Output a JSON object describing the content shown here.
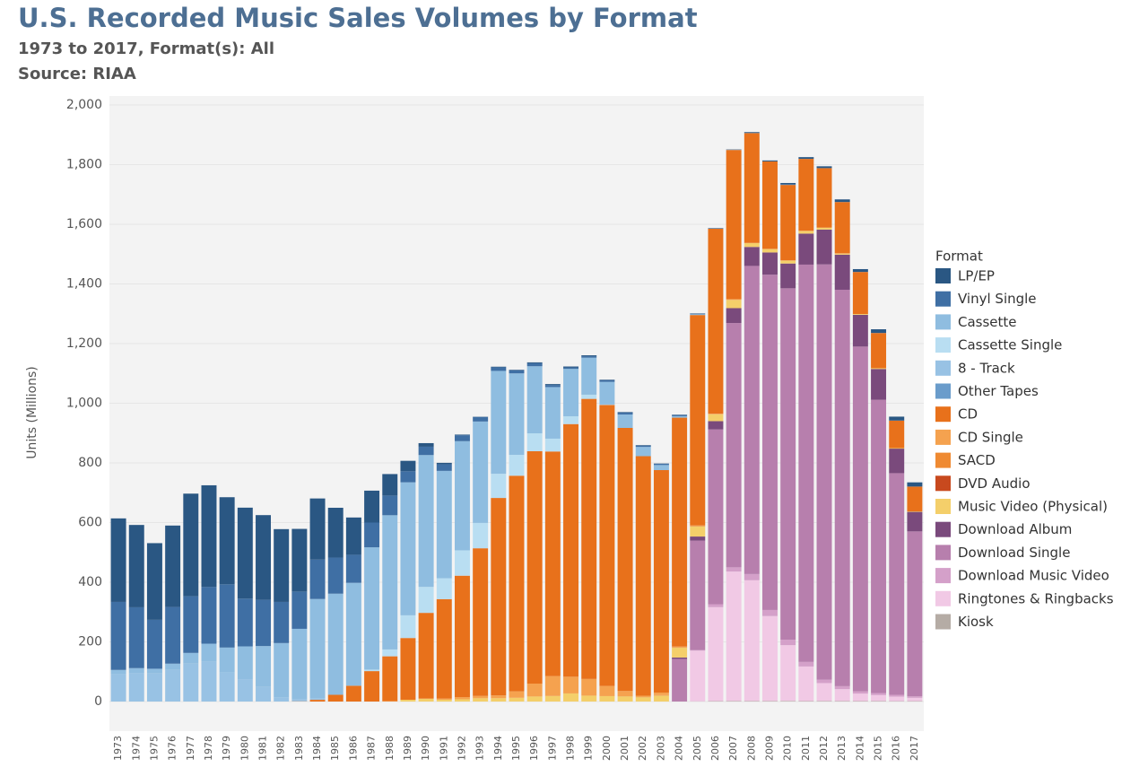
{
  "chart_data": {
    "type": "stacked-bar",
    "title": "U.S. Recorded Music Sales Volumes by Format",
    "subtitle": "1973 to 2017, Format(s): All",
    "source": "Source: RIAA",
    "y_label": "Units (Millions)",
    "legend_title": "Format",
    "categories": [
      "1973",
      "1974",
      "1975",
      "1976",
      "1977",
      "1978",
      "1979",
      "1980",
      "1981",
      "1982",
      "1983",
      "1984",
      "1985",
      "1986",
      "1987",
      "1988",
      "1989",
      "1990",
      "1991",
      "1992",
      "1993",
      "1994",
      "1995",
      "1996",
      "1997",
      "1998",
      "1999",
      "2000",
      "2001",
      "2002",
      "2003",
      "2004",
      "2005",
      "2006",
      "2007",
      "2008",
      "2009",
      "2010",
      "2011",
      "2012",
      "2013",
      "2014",
      "2015",
      "2016",
      "2017"
    ],
    "ylim": [
      0,
      2000
    ],
    "yticks": [
      0,
      200,
      400,
      600,
      800,
      {
        "value": 1000,
        "label": "1,000"
      },
      {
        "value": 1200,
        "label": "1,200"
      },
      {
        "value": 1400,
        "label": "1,400"
      },
      {
        "value": 1600,
        "label": "1,600"
      },
      {
        "value": 1800,
        "label": "1,800"
      },
      {
        "value": 2000,
        "label": "2,000"
      }
    ],
    "series": [
      {
        "name": "LP/EP",
        "color": "#2a5783",
        "values": [
          280,
          276,
          257,
          273,
          344,
          341,
          292,
          305,
          284,
          244,
          210,
          205,
          167,
          125,
          107,
          72,
          35,
          12,
          5,
          2,
          1,
          2,
          2,
          3,
          3,
          3,
          3,
          2,
          2,
          2,
          1,
          1,
          1,
          1,
          1,
          2.9,
          3.2,
          4,
          5.5,
          6,
          8.5,
          9.2,
          12,
          13,
          14
        ]
      },
      {
        "name": "Vinyl Single",
        "color": "#3f6fa4",
        "values": [
          228,
          204,
          164,
          190,
          190,
          190,
          212,
          160,
          155,
          138,
          125,
          132,
          121,
          94,
          83,
          66,
          37,
          28,
          22,
          20,
          15,
          12,
          10,
          10,
          7,
          5,
          5,
          5,
          6,
          4,
          4,
          4,
          2,
          1,
          0.6,
          0.4,
          0.3,
          2.5,
          0.3,
          0.3,
          0.3,
          0.4,
          0.5,
          0.4,
          0.4
        ]
      },
      {
        "name": "Cassette",
        "color": "#8fbde0",
        "values": [
          15,
          16,
          16,
          21,
          36,
          61,
          83,
          110,
          137,
          182,
          237,
          332,
          339,
          345,
          410,
          450,
          446,
          442,
          360,
          366,
          340,
          345,
          273,
          225,
          173,
          159,
          124,
          76,
          45,
          31,
          17,
          5,
          2.5,
          0.7,
          0.4,
          0.1,
          null,
          null,
          null,
          null,
          null,
          null,
          null,
          null,
          null
        ]
      },
      {
        "name": "Cassette Single",
        "color": "#b9def2",
        "values": [
          null,
          null,
          null,
          null,
          null,
          null,
          null,
          null,
          null,
          null,
          null,
          null,
          null,
          null,
          5,
          23,
          76,
          87,
          70,
          85,
          85,
          81,
          70,
          60,
          43,
          26,
          14,
          1.3,
          null,
          null,
          null,
          null,
          null,
          null,
          null,
          null,
          null,
          null,
          null,
          null,
          null,
          null,
          null,
          null,
          null
        ]
      },
      {
        "name": "8 - Track",
        "color": "#98c2e4",
        "values": [
          91,
          96,
          94,
          106,
          127,
          133,
          98,
          75,
          49,
          14,
          6,
          6,
          null,
          null,
          null,
          null,
          null,
          null,
          null,
          null,
          null,
          null,
          null,
          null,
          null,
          null,
          null,
          null,
          null,
          null,
          null,
          null,
          null,
          null,
          null,
          null,
          null,
          null,
          null,
          null,
          null,
          null,
          null,
          null,
          null
        ]
      },
      {
        "name": "Other Tapes",
        "color": "#6a9ccb",
        "values": [
          null,
          null,
          null,
          null,
          null,
          null,
          null,
          null,
          null,
          null,
          null,
          null,
          null,
          null,
          null,
          null,
          null,
          null,
          null,
          null,
          null,
          null,
          null,
          null,
          null,
          null,
          null,
          null,
          null,
          null,
          null,
          null,
          null,
          null,
          null,
          null,
          null,
          null,
          null,
          null,
          null,
          null,
          null,
          null,
          null
        ]
      },
      {
        "name": "CD",
        "color": "#e8711b",
        "values": [
          null,
          null,
          null,
          null,
          null,
          null,
          null,
          null,
          null,
          null,
          0.8,
          5.8,
          22.6,
          53,
          102,
          150,
          207,
          287,
          333,
          407,
          495,
          662,
          723,
          779,
          753,
          847,
          939,
          942,
          882,
          803,
          746,
          767,
          705,
          620,
          500,
          368,
          293,
          253,
          241,
          199,
          172,
          141,
          118,
          92,
          83
        ]
      },
      {
        "name": "CD Single",
        "color": "#f5a24f",
        "values": [
          null,
          null,
          null,
          null,
          null,
          null,
          null,
          null,
          null,
          null,
          null,
          null,
          null,
          null,
          null,
          1.6,
          null,
          1.1,
          4.2,
          7.3,
          7.8,
          9.3,
          21.5,
          43.2,
          66.7,
          56,
          55.9,
          34.2,
          17.3,
          4.5,
          8.3,
          3.1,
          2.8,
          1.7,
          2.6,
          0.7,
          0.9,
          1,
          1,
          1,
          1,
          null,
          null,
          null,
          null
        ]
      },
      {
        "name": "SACD",
        "color": "#ef8a32",
        "values": [
          null,
          null,
          null,
          null,
          null,
          null,
          null,
          null,
          null,
          null,
          null,
          null,
          null,
          null,
          null,
          null,
          null,
          null,
          null,
          null,
          null,
          null,
          null,
          null,
          null,
          null,
          null,
          null,
          null,
          null,
          1.3,
          0.8,
          0.5,
          0.3,
          0.2,
          0.2,
          null,
          null,
          null,
          null,
          null,
          null,
          null,
          null,
          null
        ]
      },
      {
        "name": "DVD Audio",
        "color": "#c8491e",
        "values": [
          null,
          null,
          null,
          null,
          null,
          null,
          null,
          null,
          null,
          null,
          null,
          null,
          null,
          null,
          null,
          null,
          null,
          null,
          null,
          null,
          null,
          null,
          null,
          null,
          null,
          null,
          null,
          null,
          0.3,
          0.4,
          0.4,
          0.4,
          0.5,
          0.1,
          null,
          null,
          null,
          null,
          null,
          null,
          null,
          null,
          null,
          null,
          null
        ]
      },
      {
        "name": "Music Video (Physical)",
        "color": "#f4cf6a",
        "values": [
          null,
          null,
          null,
          null,
          null,
          null,
          null,
          null,
          null,
          null,
          null,
          null,
          null,
          null,
          null,
          null,
          6,
          9.2,
          6.1,
          7.6,
          11,
          11.2,
          12.6,
          16.9,
          18.6,
          27.2,
          19.8,
          18.2,
          17.7,
          14.7,
          19.9,
          32.8,
          33.8,
          23.1,
          27.5,
          12.7,
          11.1,
          9.4,
          8.6,
          5.9,
          3.5,
          2.6,
          2.6,
          1.8,
          1.5
        ]
      },
      {
        "name": "Download Album",
        "color": "#7a4a7c",
        "values": [
          null,
          null,
          null,
          null,
          null,
          null,
          null,
          null,
          null,
          null,
          null,
          null,
          null,
          null,
          null,
          null,
          null,
          null,
          null,
          null,
          null,
          null,
          null,
          null,
          null,
          null,
          null,
          null,
          null,
          null,
          null,
          4.6,
          13.6,
          27.6,
          49.8,
          63.6,
          74.5,
          83.1,
          103.9,
          116.7,
          117.6,
          106.5,
          103.3,
          82.3,
          65.5
        ]
      },
      {
        "name": "Download Single",
        "color": "#b77fad",
        "values": [
          null,
          null,
          null,
          null,
          null,
          null,
          null,
          null,
          null,
          null,
          null,
          null,
          null,
          null,
          null,
          null,
          null,
          null,
          null,
          null,
          null,
          null,
          null,
          null,
          null,
          null,
          null,
          null,
          null,
          null,
          null,
          143,
          367,
          586,
          819,
          1033,
          1124,
          1178,
          1332,
          1392,
          1329,
          1156,
          983,
          743,
          553
        ]
      },
      {
        "name": "Download Music Video",
        "color": "#d4a0c9",
        "values": [
          null,
          null,
          null,
          null,
          null,
          null,
          null,
          null,
          null,
          null,
          null,
          null,
          null,
          null,
          null,
          null,
          null,
          null,
          null,
          null,
          null,
          null,
          null,
          null,
          null,
          null,
          null,
          null,
          null,
          null,
          null,
          null,
          1.9,
          9.9,
          14.2,
          20.8,
          20.4,
          18.4,
          15.3,
          11.7,
          9.9,
          7.5,
          7,
          6.3,
          5
        ]
      },
      {
        "name": "Ringtones & Ringbacks",
        "color": "#f1c9e5",
        "values": [
          null,
          null,
          null,
          null,
          null,
          null,
          null,
          null,
          null,
          null,
          null,
          null,
          null,
          null,
          null,
          null,
          null,
          null,
          null,
          null,
          null,
          null,
          null,
          null,
          null,
          null,
          null,
          null,
          null,
          null,
          null,
          null,
          170,
          315,
          434,
          405,
          285,
          187,
          116,
          60,
          40,
          25,
          20,
          15,
          11
        ]
      },
      {
        "name": "Kiosk",
        "color": "#b5aca5",
        "values": [
          null,
          null,
          null,
          null,
          null,
          null,
          null,
          null,
          null,
          null,
          null,
          null,
          null,
          null,
          null,
          null,
          null,
          null,
          null,
          null,
          null,
          null,
          null,
          null,
          null,
          null,
          null,
          null,
          null,
          null,
          null,
          null,
          0.7,
          1.4,
          1.8,
          1.6,
          1.6,
          2,
          1.5,
          1.8,
          1.6,
          1.5,
          1.6,
          1.3,
          1.4
        ]
      }
    ]
  }
}
